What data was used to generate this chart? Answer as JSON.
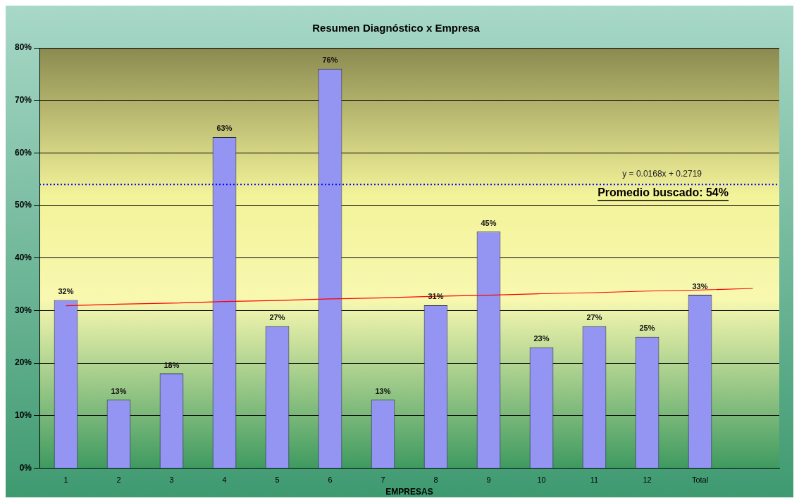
{
  "chart_data": {
    "type": "bar",
    "title": "Resumen Diagnóstico x Empresa",
    "xlabel": "EMPRESAS",
    "categories": [
      "1",
      "2",
      "3",
      "4",
      "5",
      "6",
      "7",
      "8",
      "9",
      "10",
      "11",
      "12",
      "Total",
      null
    ],
    "series": [
      {
        "color": "#9494f2",
        "values": [
          32,
          13,
          18,
          63,
          27,
          76,
          13,
          31,
          45,
          23,
          27,
          25,
          33,
          null
        ],
        "value_labels": [
          "32%",
          "13%",
          "18%",
          "63%",
          "27%",
          "76%",
          "13%",
          "31%",
          "45%",
          "23%",
          "27%",
          "25%",
          "33%",
          null
        ]
      },
      {
        "type": "line",
        "color": "#ff0000",
        "marker": "none",
        "values": [
          30.9,
          31.2,
          31.4,
          31.7,
          31.9,
          32.2,
          32.4,
          32.7,
          32.9,
          33.2,
          33.4,
          33.7,
          33.9,
          34.2
        ]
      }
    ],
    "ylim": [
      0,
      80
    ],
    "yticks": [
      {
        "value": 0,
        "label": "0%"
      },
      {
        "value": 10,
        "label": "10%"
      },
      {
        "value": 20,
        "label": "20%"
      },
      {
        "value": 30,
        "label": "30%"
      },
      {
        "value": 40,
        "label": "40%"
      },
      {
        "value": 50,
        "label": "50%"
      },
      {
        "value": 60,
        "label": "60%"
      },
      {
        "value": 70,
        "label": "70%"
      },
      {
        "value": 80,
        "label": "80%"
      }
    ],
    "grid": "y",
    "legend": false,
    "ref_lines": [
      {
        "axis": "y",
        "value": 54,
        "label": "Promedio buscado: 54%",
        "color": "#0000ff",
        "line_style": "dotted"
      }
    ],
    "annotations": [
      "y = 0.0168x + 0.2719"
    ]
  }
}
